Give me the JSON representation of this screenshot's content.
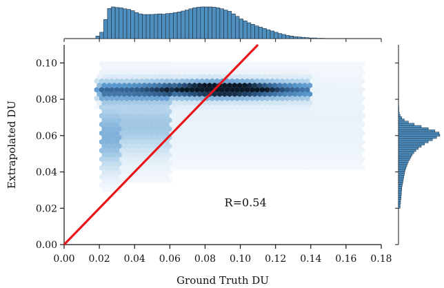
{
  "chart_data": {
    "type": "hexbin-joint",
    "xlabel": "Ground Truth DU",
    "ylabel": "Extrapolated DU",
    "xlim": [
      0,
      0.18
    ],
    "ylim": [
      0,
      0.11
    ],
    "xticks": [
      "0.00",
      "0.02",
      "0.04",
      "0.06",
      "0.08",
      "0.10",
      "0.12",
      "0.14",
      "0.16",
      "0.18"
    ],
    "yticks": [
      "0.00",
      "0.02",
      "0.04",
      "0.06",
      "0.08",
      "0.10"
    ],
    "annotation": "R=0.54",
    "fit_line": {
      "color": "#e8141a",
      "x": [
        0,
        0.11
      ],
      "y": [
        0,
        0.11
      ]
    },
    "density_regions": [
      {
        "x_range": [
          0.018,
          0.14
        ],
        "y_center": 0.085,
        "y_spread": 0.004,
        "weight": 1.0
      },
      {
        "x_range": [
          0.02,
          0.06
        ],
        "y_center": 0.065,
        "y_spread": 0.012,
        "weight": 0.55
      },
      {
        "x_range": [
          0.02,
          0.17
        ],
        "y_center": 0.07,
        "y_spread": 0.02,
        "weight": 0.18
      }
    ],
    "hist_top": {
      "bins_x_start": 0.018,
      "bin_width": 0.0022,
      "counts": [
        8,
        20,
        60,
        95,
        100,
        98,
        97,
        94,
        92,
        88,
        82,
        78,
        76,
        76,
        76,
        77,
        78,
        77,
        79,
        80,
        82,
        84,
        87,
        90,
        94,
        97,
        99,
        100,
        100,
        100,
        99,
        97,
        94,
        90,
        86,
        78,
        70,
        62,
        56,
        50,
        45,
        40,
        36,
        32,
        28,
        24,
        20,
        16,
        13,
        10,
        8,
        6,
        5,
        4,
        3,
        2,
        2,
        1,
        1
      ]
    },
    "hist_right": {
      "bins_y_start": 0.02,
      "bin_width": 0.0012,
      "counts": [
        4,
        4,
        5,
        5,
        6,
        6,
        7,
        7,
        8,
        8,
        9,
        10,
        11,
        12,
        13,
        14,
        15,
        16,
        18,
        20,
        22,
        24,
        27,
        30,
        33,
        37,
        42,
        48,
        55,
        63,
        72,
        82,
        92,
        100,
        98,
        88,
        72,
        55,
        38,
        24,
        14,
        8,
        4,
        2,
        1,
        1,
        1
      ]
    },
    "colors": {
      "hex_scale": "#1f77b4",
      "hex_dark": "#0b1a2a",
      "hist_fill": "#4f8fbf",
      "hist_edge": "#1a2a3a"
    }
  }
}
